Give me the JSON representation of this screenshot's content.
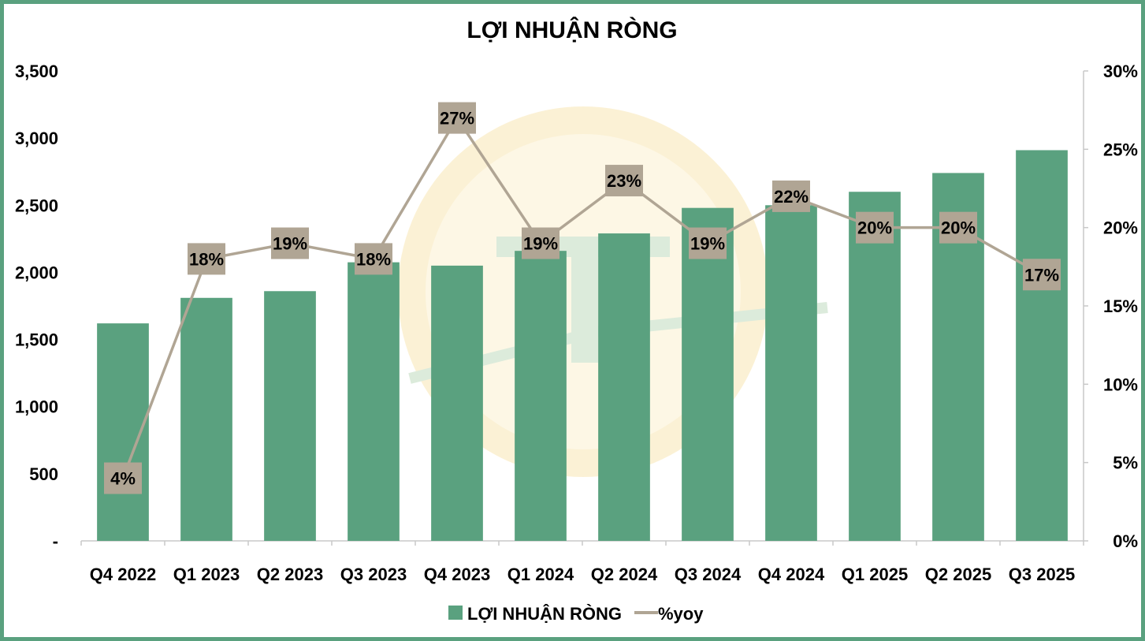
{
  "chart_data": {
    "type": "bar",
    "title": "LỢI NHUẬN RÒNG",
    "categories": [
      "Q4 2022",
      "Q1 2023",
      "Q2 2023",
      "Q3 2023",
      "Q4 2023",
      "Q1 2024",
      "Q2 2024",
      "Q3 2024",
      "Q4 2024",
      "Q1 2025",
      "Q2 2025",
      "Q3 2025"
    ],
    "series": [
      {
        "name": "LỢI NHUẬN RÒNG",
        "type": "bar",
        "axis": "left",
        "color": "#5aa17f",
        "values": [
          1620,
          1810,
          1860,
          2075,
          2050,
          2160,
          2290,
          2480,
          2500,
          2600,
          2740,
          2910
        ]
      },
      {
        "name": "%yoy",
        "type": "line",
        "axis": "right",
        "color": "#b0a594",
        "values": [
          4,
          18,
          19,
          18,
          27,
          19,
          23,
          19,
          22,
          20,
          20,
          17
        ],
        "labels": [
          "4%",
          "18%",
          "19%",
          "18%",
          "27%",
          "19%",
          "23%",
          "19%",
          "22%",
          "20%",
          "20%",
          "17%"
        ]
      }
    ],
    "y_left": {
      "min": 0,
      "max": 3500,
      "ticks": [
        0,
        500,
        1000,
        1500,
        2000,
        2500,
        3000,
        3500
      ],
      "tick_labels": [
        "-",
        "500",
        "1,000",
        "1,500",
        "2,000",
        "2,500",
        "3,000",
        "3,500"
      ]
    },
    "y_right": {
      "min": 0,
      "max": 30,
      "ticks": [
        0,
        5,
        10,
        15,
        20,
        25,
        30
      ],
      "tick_labels": [
        "0%",
        "5%",
        "10%",
        "15%",
        "20%",
        "25%",
        "30%"
      ]
    },
    "legend": {
      "placement": "bottom",
      "entries": [
        "LỢI NHUẬN RÒNG",
        "%yoy"
      ]
    },
    "grid": false
  }
}
